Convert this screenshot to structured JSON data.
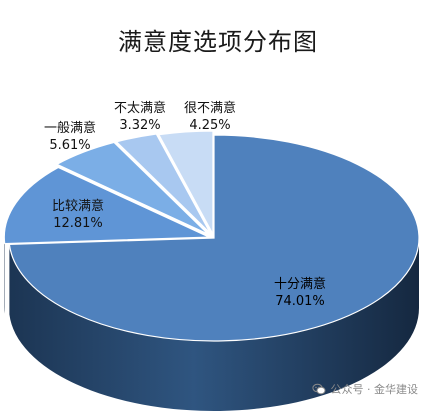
{
  "chart_data": {
    "type": "pie",
    "title": "满意度选项分布图",
    "categories": [
      "十分满意",
      "比较满意",
      "一般满意",
      "不太满意",
      "很不满意"
    ],
    "values": [
      74.01,
      12.81,
      5.61,
      3.32,
      4.25
    ],
    "value_labels": [
      "74.01%",
      "12.81%",
      "5.61%",
      "3.32%",
      "4.25%"
    ],
    "colors": [
      "#4f81bd",
      "#5f95d6",
      "#7baee6",
      "#a8c8f0",
      "#c8dcf5"
    ],
    "style": "3d-exploded"
  },
  "watermark": {
    "text": "公众号 · 金华建设",
    "icon": "wechat-icon"
  }
}
